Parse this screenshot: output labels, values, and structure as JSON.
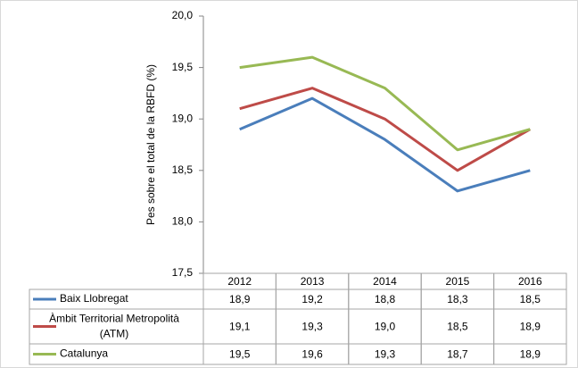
{
  "chart_data": {
    "type": "line",
    "y_label": "Pes sobre el total de la RBFD (%)",
    "categories": [
      "2012",
      "2013",
      "2014",
      "2015",
      "2016"
    ],
    "series": [
      {
        "name": "Baix Llobregat",
        "color": "#4a7ebb",
        "values": [
          18.9,
          19.2,
          18.8,
          18.3,
          18.5
        ],
        "value_labels": [
          "18,9",
          "19,2",
          "18,8",
          "18,3",
          "18,5"
        ]
      },
      {
        "name": "Àmbit Territorial Metropolità (ATM)",
        "color": "#be4b48",
        "values": [
          19.1,
          19.3,
          19.0,
          18.5,
          18.9
        ],
        "value_labels": [
          "19,1",
          "19,3",
          "19,0",
          "18,5",
          "18,9"
        ]
      },
      {
        "name": "Catalunya",
        "color": "#98b954",
        "values": [
          19.5,
          19.6,
          19.3,
          18.7,
          18.9
        ],
        "value_labels": [
          "19,5",
          "19,6",
          "19,3",
          "18,7",
          "18,9"
        ]
      }
    ],
    "ylim": [
      17.5,
      20
    ],
    "yticks": [
      {
        "value": 17.5,
        "label": "17,5"
      },
      {
        "value": 18,
        "label": "18,0"
      },
      {
        "value": 18.5,
        "label": "18,5"
      },
      {
        "value": 19,
        "label": "19,0"
      },
      {
        "value": 19.5,
        "label": "19,5"
      },
      {
        "value": 20,
        "label": "20,0"
      }
    ],
    "grid": false
  }
}
